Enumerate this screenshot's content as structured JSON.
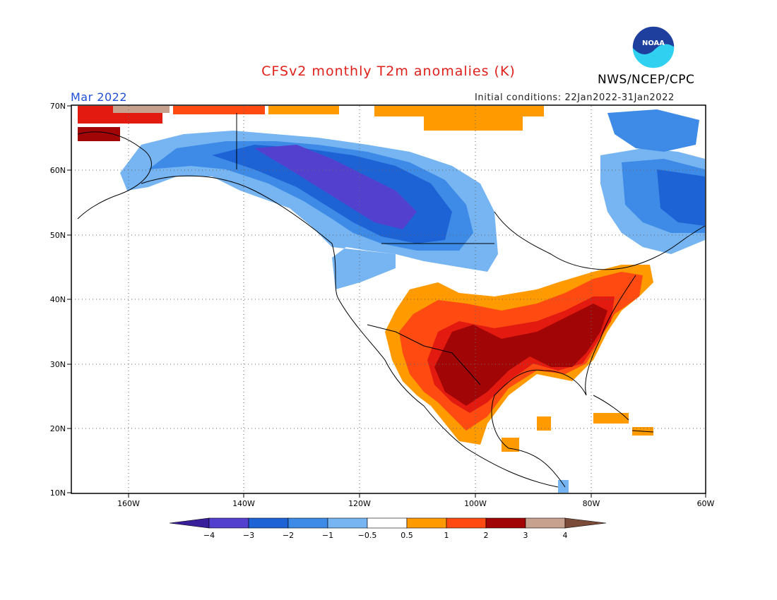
{
  "title": "CFSv2 monthly T2m anomalies (K)",
  "agency": "NWS/NCEP/CPC",
  "valid_month": "Mar 2022",
  "initial_conditions": "Initial conditions: 22Jan2022-31Jan2022",
  "logo_text": "NOAA",
  "colors": {
    "title": "#e0201b",
    "month": "#1f4fd6",
    "logo_blue": "#1e3f9e",
    "logo_cyan": "#2fd0f0"
  },
  "latitude_labels": [
    "70N",
    "60N",
    "50N",
    "40N",
    "30N",
    "20N",
    "10N"
  ],
  "longitude_labels": [
    "160W",
    "140W",
    "120W",
    "100W",
    "80W",
    "60W"
  ],
  "colorbar": {
    "colors": [
      "#3a1f9a",
      "#5340cf",
      "#1e63d6",
      "#3d8be6",
      "#76b4f2",
      "#ffffff",
      "#ff9a00",
      "#ff4a12",
      "#e21a10",
      "#a10505",
      "#c8a08e",
      "#7b4b3a"
    ],
    "labels": [
      "−4",
      "−3",
      "−2",
      "−1",
      "−0.5",
      "0.5",
      "1",
      "2",
      "3",
      "4"
    ]
  }
}
